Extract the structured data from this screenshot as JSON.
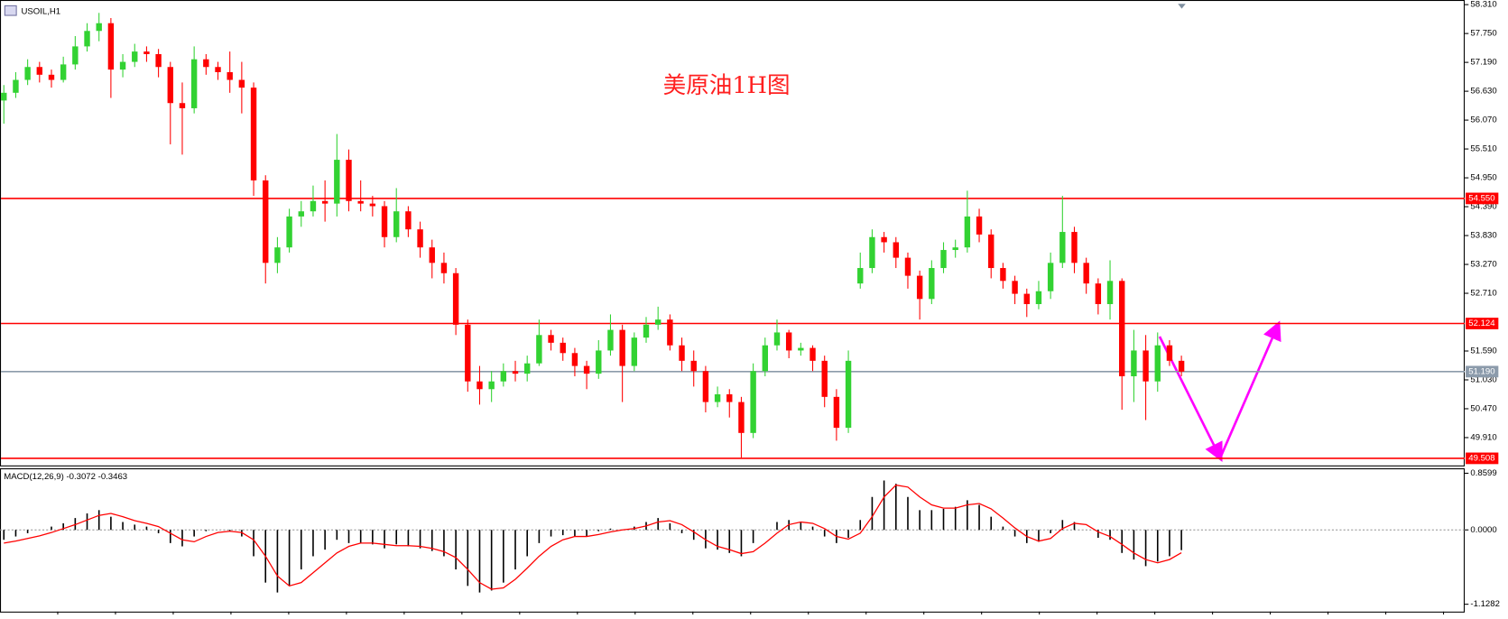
{
  "chart_data": [
    {
      "type": "candlestick",
      "title": "USOIL,H1",
      "annotation": "美原油1H图",
      "open": [
        56.45,
        56.6,
        56.85,
        57.1,
        56.95,
        56.85,
        57.15,
        57.5,
        57.8,
        57.95,
        57.05,
        57.2,
        57.4,
        57.35,
        57.1,
        56.4,
        56.3,
        57.25,
        57.1,
        57.0,
        56.85,
        56.7,
        54.9,
        53.3,
        53.6,
        54.2,
        54.3,
        54.5,
        54.45,
        55.3,
        54.5,
        54.45,
        54.4,
        53.8,
        54.3,
        53.95,
        53.6,
        53.3,
        53.1,
        52.1,
        51.0,
        50.85,
        51.0,
        51.2,
        51.15,
        51.35,
        51.9,
        51.75,
        51.55,
        51.3,
        51.15,
        51.6,
        52.0,
        51.3,
        51.85,
        52.1,
        52.2,
        51.7,
        51.4,
        51.2,
        50.6,
        50.75,
        50.6,
        50.0,
        51.2,
        51.7,
        51.95,
        51.6,
        51.65,
        51.4,
        50.7,
        50.1,
        52.9,
        53.2,
        53.8,
        53.7,
        53.4,
        53.05,
        52.6,
        53.2,
        53.55,
        53.6,
        54.2,
        53.85,
        53.2,
        52.95,
        52.7,
        52.5,
        52.75,
        53.3,
        53.9,
        53.3,
        52.9,
        52.5,
        52.95,
        51.1,
        51.6,
        51.0,
        51.7,
        51.4
      ],
      "high": [
        56.75,
        57.0,
        57.25,
        57.2,
        57.05,
        57.3,
        57.7,
        57.95,
        58.15,
        58.05,
        57.35,
        57.55,
        57.5,
        57.45,
        57.2,
        56.8,
        57.5,
        57.35,
        57.2,
        57.4,
        57.2,
        56.8,
        55.0,
        53.8,
        54.35,
        54.5,
        54.8,
        54.9,
        55.8,
        55.5,
        54.9,
        54.6,
        54.5,
        54.75,
        54.4,
        54.1,
        53.75,
        53.5,
        53.2,
        52.2,
        51.3,
        51.2,
        51.35,
        51.4,
        51.5,
        52.2,
        52.0,
        51.85,
        51.65,
        51.4,
        51.8,
        52.3,
        52.1,
        51.95,
        52.25,
        52.45,
        52.3,
        51.85,
        51.6,
        51.3,
        50.9,
        50.85,
        50.7,
        51.35,
        51.85,
        52.2,
        52.0,
        51.75,
        51.7,
        51.5,
        50.85,
        51.6,
        53.5,
        53.95,
        53.9,
        53.8,
        53.5,
        53.15,
        53.35,
        53.7,
        53.75,
        54.7,
        54.35,
        53.95,
        53.3,
        53.05,
        52.8,
        52.95,
        53.5,
        54.6,
        54.0,
        53.4,
        53.0,
        53.35,
        53.0,
        52.0,
        51.9,
        51.95,
        51.8,
        51.5
      ],
      "low": [
        56.0,
        56.5,
        56.75,
        56.8,
        56.7,
        56.8,
        57.05,
        57.4,
        57.6,
        56.5,
        56.9,
        57.1,
        57.2,
        56.9,
        55.6,
        55.4,
        56.2,
        56.95,
        56.85,
        56.6,
        56.2,
        54.6,
        52.9,
        53.1,
        53.5,
        54.0,
        54.2,
        54.1,
        54.2,
        54.3,
        54.3,
        54.2,
        53.6,
        53.7,
        53.8,
        53.4,
        53.0,
        52.9,
        51.9,
        50.8,
        50.55,
        50.6,
        50.9,
        51.0,
        51.0,
        51.3,
        51.6,
        51.4,
        51.1,
        50.85,
        51.05,
        51.5,
        50.6,
        51.2,
        51.75,
        52.0,
        51.6,
        51.2,
        50.9,
        50.4,
        50.5,
        50.3,
        49.52,
        49.9,
        51.1,
        51.6,
        51.45,
        51.5,
        51.2,
        50.5,
        49.85,
        50.0,
        52.8,
        53.1,
        53.5,
        53.2,
        52.8,
        52.2,
        52.5,
        53.1,
        53.4,
        53.5,
        53.7,
        53.0,
        52.8,
        52.5,
        52.25,
        52.4,
        52.6,
        53.2,
        53.1,
        52.7,
        52.3,
        52.2,
        50.45,
        50.6,
        50.25,
        50.8,
        51.3,
        51.1
      ],
      "close": [
        56.6,
        56.85,
        57.1,
        56.95,
        56.85,
        57.15,
        57.5,
        57.8,
        57.95,
        57.05,
        57.2,
        57.4,
        57.35,
        57.1,
        56.4,
        56.3,
        57.25,
        57.1,
        57.0,
        56.85,
        56.7,
        54.9,
        53.3,
        53.6,
        54.2,
        54.3,
        54.5,
        54.45,
        55.3,
        54.5,
        54.45,
        54.4,
        53.8,
        54.3,
        53.95,
        53.6,
        53.3,
        53.1,
        52.1,
        51.0,
        50.85,
        51.0,
        51.2,
        51.15,
        51.35,
        51.9,
        51.75,
        51.55,
        51.3,
        51.15,
        51.6,
        52.0,
        51.3,
        51.85,
        52.1,
        52.2,
        51.7,
        51.4,
        51.2,
        50.6,
        50.75,
        50.6,
        50.0,
        51.2,
        51.7,
        51.95,
        51.6,
        51.65,
        51.4,
        50.7,
        50.1,
        51.4,
        53.2,
        53.8,
        53.7,
        53.4,
        53.05,
        52.6,
        53.2,
        53.55,
        53.6,
        54.2,
        53.85,
        53.2,
        52.95,
        52.7,
        52.5,
        52.75,
        53.3,
        53.9,
        53.3,
        52.9,
        52.5,
        52.95,
        51.1,
        51.6,
        51.0,
        51.7,
        51.4,
        51.19
      ],
      "up_color": "#32d232",
      "down_color": "#ff0000",
      "ylim": [
        49.37,
        58.4
      ],
      "yticks": [
        {
          "value": 58.31,
          "label": "58.310"
        },
        {
          "value": 57.75,
          "label": "57.750"
        },
        {
          "value": 57.19,
          "label": "57.190"
        },
        {
          "value": 56.63,
          "label": "56.630"
        },
        {
          "value": 56.07,
          "label": "56.070"
        },
        {
          "value": 55.51,
          "label": "55.510"
        },
        {
          "value": 54.95,
          "label": "54.950"
        },
        {
          "value": 54.39,
          "label": "54.390"
        },
        {
          "value": 53.83,
          "label": "53.830"
        },
        {
          "value": 53.27,
          "label": "53.270"
        },
        {
          "value": 52.71,
          "label": "52.710"
        },
        {
          "value": 51.59,
          "label": "51.590"
        },
        {
          "value": 51.03,
          "label": "51.030"
        },
        {
          "value": 50.47,
          "label": "50.470"
        },
        {
          "value": 49.91,
          "label": "49.910"
        }
      ],
      "hlines": [
        {
          "value": 54.55,
          "label": "54.550",
          "color": "#ff0000"
        },
        {
          "value": 52.124,
          "label": "52.124",
          "color": "#ff0000"
        },
        {
          "value": 49.508,
          "label": "49.508",
          "color": "#ff0000"
        },
        {
          "value": 51.19,
          "label": "51.190",
          "color": "#8c9bab"
        }
      ]
    },
    {
      "type": "macd",
      "title": "MACD(12,26,9) -0.3072 -0.3463",
      "histogram": [
        -0.15,
        -0.1,
        -0.05,
        0.0,
        0.05,
        0.1,
        0.18,
        0.25,
        0.3,
        0.2,
        0.12,
        0.08,
        0.05,
        -0.05,
        -0.2,
        -0.25,
        -0.1,
        -0.02,
        0.0,
        -0.02,
        -0.1,
        -0.4,
        -0.8,
        -0.95,
        -0.85,
        -0.6,
        -0.4,
        -0.3,
        -0.15,
        -0.2,
        -0.2,
        -0.22,
        -0.28,
        -0.22,
        -0.25,
        -0.28,
        -0.32,
        -0.4,
        -0.6,
        -0.85,
        -0.95,
        -0.92,
        -0.8,
        -0.6,
        -0.4,
        -0.2,
        -0.1,
        -0.08,
        -0.1,
        -0.1,
        -0.02,
        0.02,
        0.0,
        0.05,
        0.12,
        0.18,
        0.1,
        -0.05,
        -0.15,
        -0.28,
        -0.3,
        -0.35,
        -0.4,
        -0.2,
        0.0,
        0.12,
        0.15,
        0.12,
        0.05,
        -0.1,
        -0.2,
        -0.12,
        0.15,
        0.5,
        0.75,
        0.7,
        0.5,
        0.3,
        0.3,
        0.32,
        0.35,
        0.45,
        0.38,
        0.2,
        0.05,
        -0.1,
        -0.2,
        -0.18,
        -0.05,
        0.15,
        0.12,
        0.0,
        -0.12,
        -0.15,
        -0.35,
        -0.45,
        -0.55,
        -0.48,
        -0.4,
        -0.3072
      ],
      "signal": [
        -0.2,
        -0.17,
        -0.13,
        -0.09,
        -0.04,
        0.02,
        0.08,
        0.15,
        0.22,
        0.25,
        0.2,
        0.14,
        0.1,
        0.05,
        -0.05,
        -0.15,
        -0.18,
        -0.1,
        -0.04,
        -0.02,
        -0.04,
        -0.15,
        -0.4,
        -0.7,
        -0.85,
        -0.8,
        -0.65,
        -0.5,
        -0.35,
        -0.25,
        -0.2,
        -0.2,
        -0.22,
        -0.24,
        -0.24,
        -0.25,
        -0.28,
        -0.33,
        -0.42,
        -0.6,
        -0.8,
        -0.9,
        -0.88,
        -0.75,
        -0.58,
        -0.4,
        -0.25,
        -0.15,
        -0.1,
        -0.1,
        -0.07,
        -0.03,
        0.0,
        0.02,
        0.06,
        0.12,
        0.14,
        0.08,
        -0.03,
        -0.15,
        -0.25,
        -0.3,
        -0.36,
        -0.33,
        -0.2,
        -0.05,
        0.08,
        0.12,
        0.1,
        0.02,
        -0.1,
        -0.14,
        -0.05,
        0.2,
        0.5,
        0.68,
        0.65,
        0.5,
        0.38,
        0.33,
        0.33,
        0.38,
        0.4,
        0.32,
        0.18,
        0.03,
        -0.1,
        -0.17,
        -0.13,
        0.02,
        0.1,
        0.08,
        -0.03,
        -0.1,
        -0.22,
        -0.35,
        -0.45,
        -0.5,
        -0.45,
        -0.3463
      ],
      "histogram_color": "#000000",
      "signal_color": "#ff0000",
      "ylim": [
        -1.24,
        0.92
      ],
      "yticks": [
        {
          "value": 0.8599,
          "label": "0.8599"
        },
        {
          "value": 0,
          "label": "0.0000"
        },
        {
          "value": -1.1282,
          "label": "-1.1282"
        }
      ]
    }
  ]
}
